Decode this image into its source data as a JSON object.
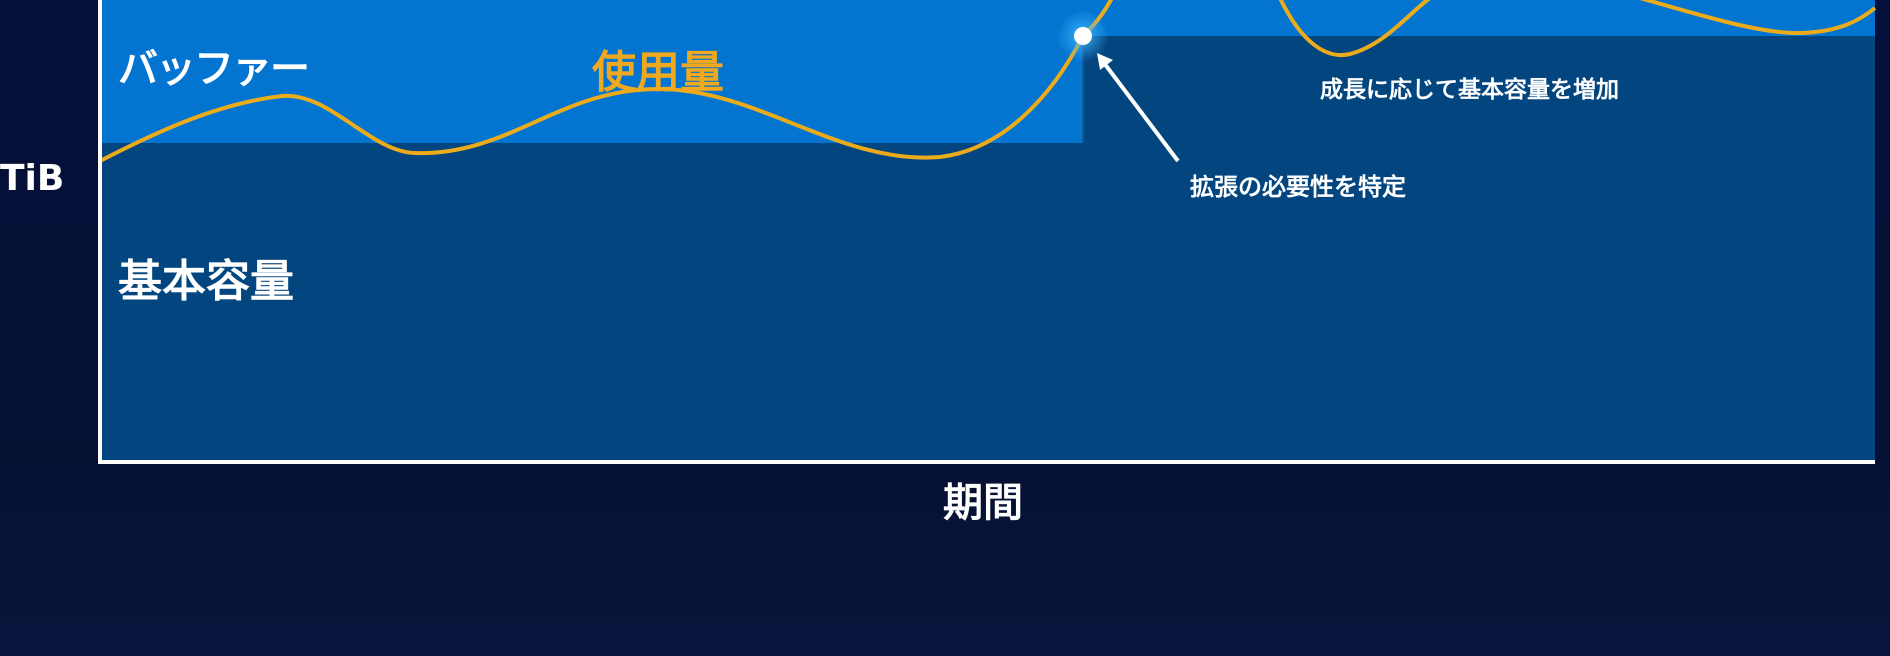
{
  "labels": {
    "y_axis": "TiB",
    "x_axis": "期間",
    "buffer": "バッファー",
    "usage": "使用量",
    "base_capacity": "基本容量",
    "increase_base": "成長に応じて基本容量を増加",
    "identify_need": "拡張の必要性を特定"
  },
  "colors": {
    "background": "#051138",
    "base_capacity": "#03457f",
    "buffer": "#0375d0",
    "usage_line": "#ecab1b",
    "axis": "#ffffff",
    "text": "#ffffff",
    "usage_text": "#f0a91e"
  }
}
